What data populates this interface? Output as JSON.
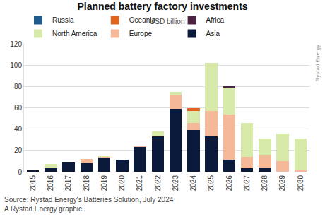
{
  "chart_data": {
    "type": "bar",
    "title": "Planned battery factory investments",
    "subtitle": "USD billion",
    "categories": [
      "2015",
      "2016",
      "2017",
      "2018",
      "2019",
      "2020",
      "2021",
      "2022",
      "2023",
      "2024",
      "2025",
      "2026",
      "2027",
      "2028",
      "2029",
      "2030"
    ],
    "series": [
      {
        "name": "Asia",
        "color": "#0b1a3b",
        "values": [
          1,
          3,
          9,
          8,
          13,
          11,
          23,
          33,
          59,
          39,
          33,
          11,
          3,
          4,
          0,
          0
        ]
      },
      {
        "name": "Europe",
        "color": "#f5b99a",
        "values": [
          0,
          0,
          0,
          4,
          1,
          0,
          1,
          1,
          13,
          7,
          24,
          43,
          11,
          12,
          10,
          2
        ]
      },
      {
        "name": "North America",
        "color": "#d8eaaa",
        "values": [
          0,
          4,
          0,
          0,
          1,
          0,
          0,
          4,
          3,
          11,
          45,
          25,
          32,
          15,
          26,
          29
        ]
      },
      {
        "name": "Africa",
        "color": "#4b2341",
        "values": [
          0,
          0,
          0,
          0,
          0,
          0,
          0,
          0,
          0,
          0,
          0,
          1,
          0,
          0,
          0,
          0
        ]
      },
      {
        "name": "Oceania",
        "color": "#e3641f",
        "values": [
          0,
          0,
          0,
          0,
          0,
          0,
          0,
          0,
          0,
          3,
          0,
          0,
          0,
          0,
          0,
          0
        ]
      },
      {
        "name": "Russia",
        "color": "#1f5b8c",
        "values": [
          0,
          0,
          0,
          0,
          0,
          0,
          0,
          0,
          0,
          0,
          0,
          0,
          0,
          0,
          0,
          0
        ]
      }
    ],
    "stacked": true,
    "ylim": [
      0,
      120
    ],
    "yticks": [
      0,
      20,
      40,
      60,
      80,
      100,
      120
    ],
    "grid": true,
    "legend": "top",
    "annotations": [
      "Source: Rystad Energy's Batteries Solution, July 2024",
      "A Rystad Energy graphic",
      "Rystad Energy"
    ]
  }
}
